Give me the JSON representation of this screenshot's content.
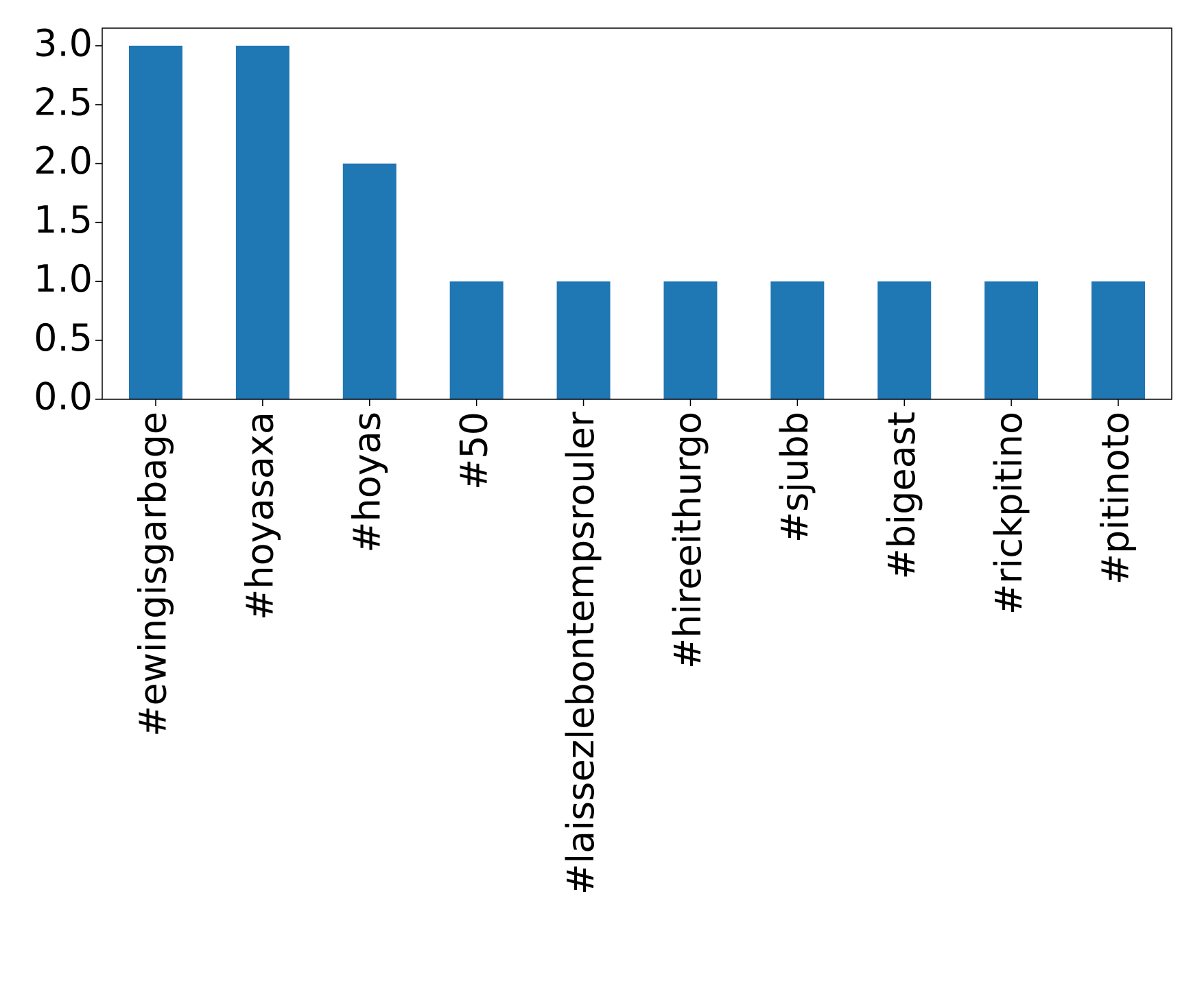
{
  "chart_data": {
    "type": "bar",
    "categories": [
      "#ewingisgarbage",
      "#hoyasaxa",
      "#hoyas",
      "#50",
      "#laissezlebontempsrouler",
      "#hireeithurgo",
      "#sjubb",
      "#bigeast",
      "#rickpitino",
      "#pitinoto"
    ],
    "values": [
      3,
      3,
      2,
      1,
      1,
      1,
      1,
      1,
      1,
      1
    ],
    "color": "#1f77b4",
    "ylim": [
      0,
      3.15
    ],
    "yticks": [
      {
        "value": 0,
        "label": "0.0"
      },
      {
        "value": 0.5,
        "label": "0.5"
      },
      {
        "value": 1,
        "label": "1.0"
      },
      {
        "value": 1.5,
        "label": "1.5"
      },
      {
        "value": 2,
        "label": "2.0"
      },
      {
        "value": 2.5,
        "label": "2.5"
      },
      {
        "value": 3,
        "label": "3.0"
      }
    ],
    "grid": false
  }
}
